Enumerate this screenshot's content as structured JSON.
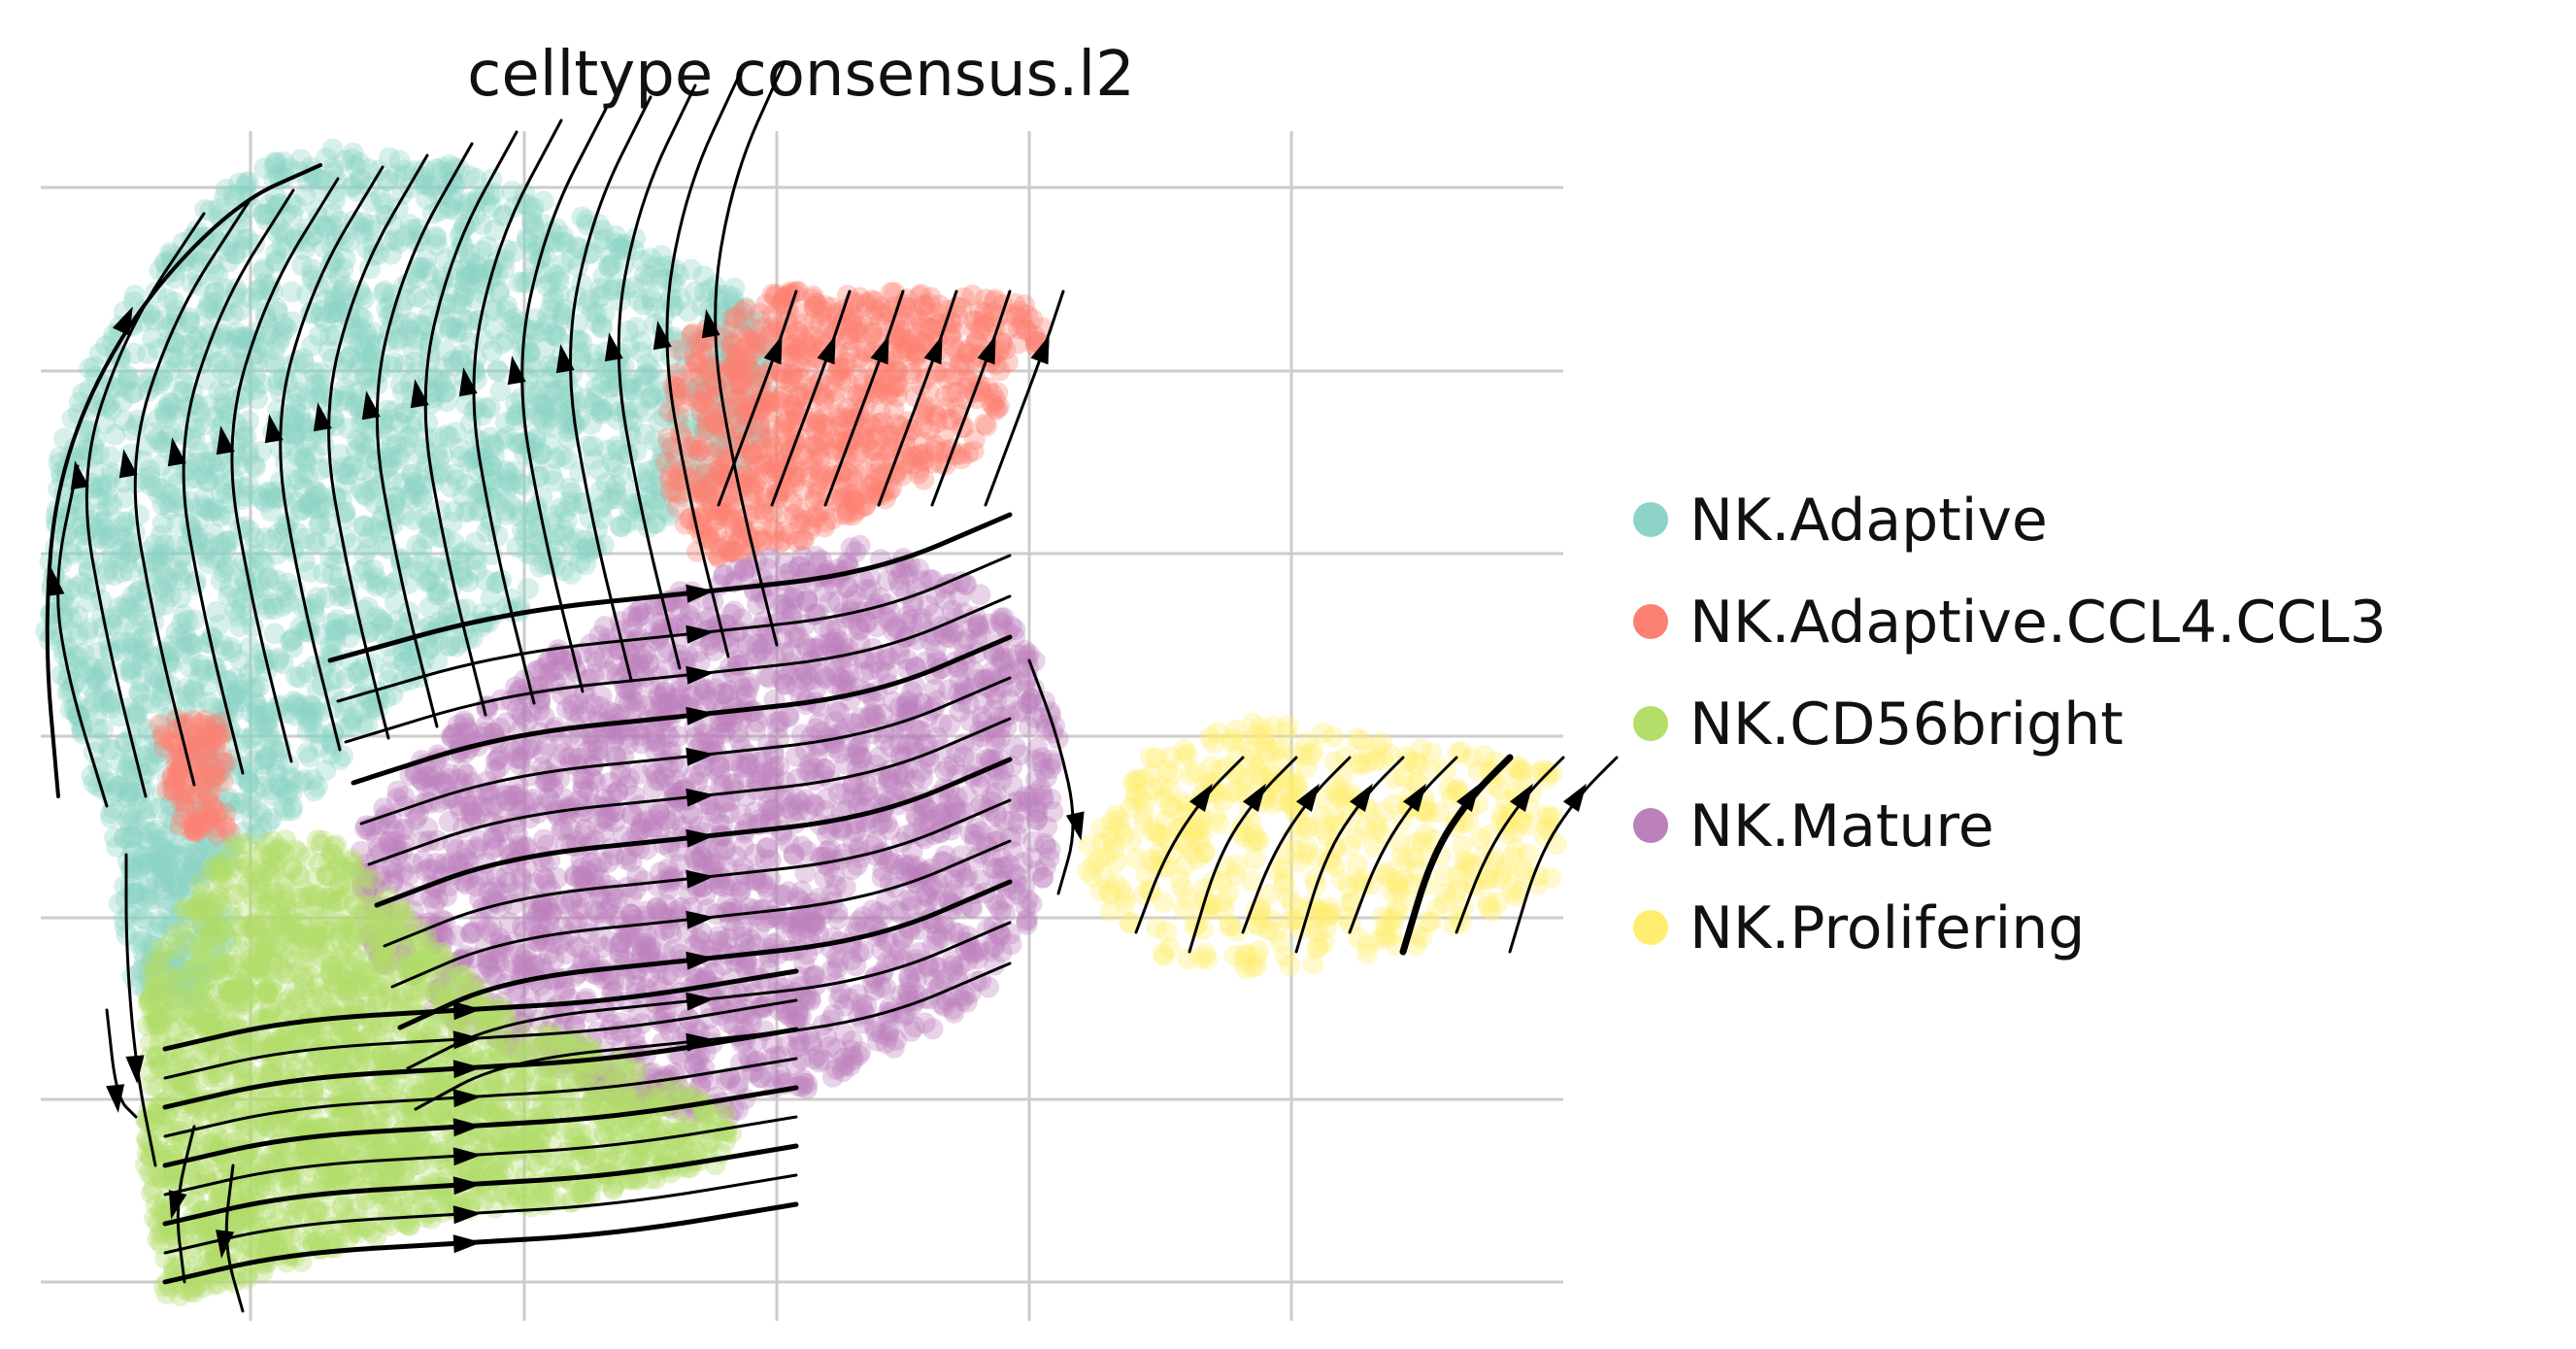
{
  "chart_data": {
    "type": "scatter",
    "title": "celltype consensus.l2",
    "xlabel": "",
    "ylabel": "",
    "grid": true,
    "legend_position": "right",
    "series": [
      {
        "name": "NK.Adaptive",
        "color": "#8dd3c7"
      },
      {
        "name": "NK.Adaptive.CCL4.CCL3",
        "color": "#fb8072"
      },
      {
        "name": "NK.CD56bright",
        "color": "#b3de69"
      },
      {
        "name": "NK.Mature",
        "color": "#bc80bd"
      },
      {
        "name": "NK.Prolifering",
        "color": "#ffed6f"
      }
    ],
    "overlay": "velocity streamlines with arrowheads"
  }
}
